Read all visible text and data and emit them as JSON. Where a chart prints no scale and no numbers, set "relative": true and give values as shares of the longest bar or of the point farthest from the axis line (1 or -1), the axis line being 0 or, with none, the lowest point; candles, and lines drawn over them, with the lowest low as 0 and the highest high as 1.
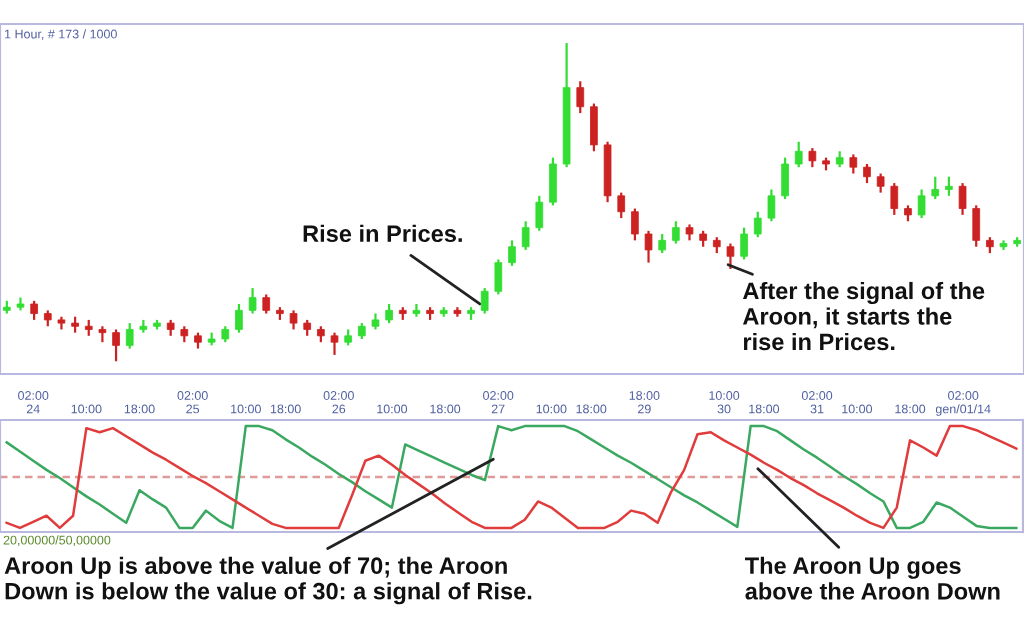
{
  "chart_data": [
    {
      "type": "candlestick",
      "relative": true,
      "tick_labels": false,
      "categories": [
        null,
        null,
        null,
        null,
        null,
        null,
        null,
        null,
        null,
        null,
        null,
        null,
        null,
        null,
        null,
        null,
        null,
        null,
        null,
        null,
        null,
        null,
        null,
        null,
        null,
        null,
        null,
        null,
        null,
        null,
        null,
        null,
        null,
        null,
        null,
        null,
        null,
        null,
        null,
        null,
        null,
        null,
        null,
        null,
        null,
        null,
        null,
        null,
        null,
        null,
        null,
        null,
        null,
        null,
        null,
        null,
        null,
        null,
        null,
        null,
        null,
        null,
        null,
        null,
        null,
        null,
        null,
        null,
        null,
        null,
        null,
        null,
        null,
        null,
        null
      ],
      "ohlc": [
        [
          0.16,
          0.19,
          0.15,
          0.17
        ],
        [
          0.17,
          0.2,
          0.16,
          0.18
        ],
        [
          0.18,
          0.19,
          0.13,
          0.15
        ],
        [
          0.15,
          0.16,
          0.11,
          0.13
        ],
        [
          0.13,
          0.14,
          0.1,
          0.12
        ],
        [
          0.12,
          0.14,
          0.09,
          0.11
        ],
        [
          0.11,
          0.13,
          0.08,
          0.1
        ],
        [
          0.1,
          0.11,
          0.06,
          0.09
        ],
        [
          0.09,
          0.1,
          0.0,
          0.05
        ],
        [
          0.05,
          0.12,
          0.04,
          0.1
        ],
        [
          0.1,
          0.13,
          0.09,
          0.11
        ],
        [
          0.11,
          0.13,
          0.1,
          0.12
        ],
        [
          0.12,
          0.13,
          0.08,
          0.1
        ],
        [
          0.1,
          0.11,
          0.06,
          0.08
        ],
        [
          0.08,
          0.09,
          0.04,
          0.06
        ],
        [
          0.06,
          0.09,
          0.05,
          0.07
        ],
        [
          0.07,
          0.11,
          0.06,
          0.1
        ],
        [
          0.1,
          0.18,
          0.09,
          0.16
        ],
        [
          0.16,
          0.23,
          0.15,
          0.2
        ],
        [
          0.2,
          0.21,
          0.15,
          0.16
        ],
        [
          0.16,
          0.17,
          0.13,
          0.15
        ],
        [
          0.15,
          0.16,
          0.1,
          0.12
        ],
        [
          0.12,
          0.13,
          0.08,
          0.1
        ],
        [
          0.1,
          0.11,
          0.06,
          0.08
        ],
        [
          0.08,
          0.09,
          0.02,
          0.06
        ],
        [
          0.06,
          0.1,
          0.05,
          0.08
        ],
        [
          0.08,
          0.12,
          0.07,
          0.11
        ],
        [
          0.11,
          0.15,
          0.1,
          0.13
        ],
        [
          0.13,
          0.18,
          0.12,
          0.16
        ],
        [
          0.16,
          0.17,
          0.13,
          0.15
        ],
        [
          0.15,
          0.18,
          0.14,
          0.16
        ],
        [
          0.16,
          0.17,
          0.13,
          0.15
        ],
        [
          0.15,
          0.17,
          0.14,
          0.16
        ],
        [
          0.16,
          0.17,
          0.14,
          0.15
        ],
        [
          0.15,
          0.17,
          0.13,
          0.16
        ],
        [
          0.16,
          0.23,
          0.15,
          0.22
        ],
        [
          0.22,
          0.32,
          0.21,
          0.31
        ],
        [
          0.31,
          0.38,
          0.3,
          0.36
        ],
        [
          0.36,
          0.44,
          0.35,
          0.42
        ],
        [
          0.42,
          0.52,
          0.41,
          0.5
        ],
        [
          0.5,
          0.64,
          0.49,
          0.62
        ],
        [
          0.62,
          1.0,
          0.61,
          0.86
        ],
        [
          0.86,
          0.88,
          0.78,
          0.8
        ],
        [
          0.8,
          0.81,
          0.66,
          0.68
        ],
        [
          0.68,
          0.69,
          0.5,
          0.52
        ],
        [
          0.52,
          0.53,
          0.45,
          0.47
        ],
        [
          0.47,
          0.48,
          0.38,
          0.4
        ],
        [
          0.4,
          0.41,
          0.31,
          0.35
        ],
        [
          0.35,
          0.4,
          0.34,
          0.38
        ],
        [
          0.38,
          0.44,
          0.37,
          0.42
        ],
        [
          0.42,
          0.43,
          0.38,
          0.4
        ],
        [
          0.4,
          0.41,
          0.36,
          0.38
        ],
        [
          0.38,
          0.39,
          0.34,
          0.36
        ],
        [
          0.36,
          0.37,
          0.29,
          0.33
        ],
        [
          0.33,
          0.42,
          0.32,
          0.4
        ],
        [
          0.4,
          0.47,
          0.39,
          0.45
        ],
        [
          0.45,
          0.54,
          0.44,
          0.52
        ],
        [
          0.52,
          0.64,
          0.51,
          0.62
        ],
        [
          0.62,
          0.69,
          0.61,
          0.66
        ],
        [
          0.66,
          0.67,
          0.61,
          0.63
        ],
        [
          0.63,
          0.64,
          0.6,
          0.62
        ],
        [
          0.62,
          0.66,
          0.61,
          0.64
        ],
        [
          0.64,
          0.65,
          0.59,
          0.61
        ],
        [
          0.61,
          0.62,
          0.56,
          0.58
        ],
        [
          0.58,
          0.59,
          0.53,
          0.55
        ],
        [
          0.55,
          0.56,
          0.46,
          0.48
        ],
        [
          0.48,
          0.49,
          0.44,
          0.46
        ],
        [
          0.46,
          0.54,
          0.45,
          0.52
        ],
        [
          0.52,
          0.58,
          0.51,
          0.54
        ],
        [
          0.54,
          0.58,
          0.52,
          0.55
        ],
        [
          0.55,
          0.56,
          0.46,
          0.48
        ],
        [
          0.48,
          0.49,
          0.36,
          0.38
        ],
        [
          0.38,
          0.39,
          0.34,
          0.36
        ],
        [
          0.36,
          0.38,
          0.35,
          0.37
        ],
        [
          0.37,
          0.39,
          0.36,
          0.38
        ]
      ],
      "colors": [
        "#33dd33",
        "#33dd33",
        "#cc2222",
        "#cc2222",
        "#cc2222",
        "#cc2222",
        "#cc2222",
        "#cc2222",
        "#cc2222",
        "#33dd33",
        "#33dd33",
        "#33dd33",
        "#cc2222",
        "#cc2222",
        "#cc2222",
        "#33dd33",
        "#33dd33",
        "#33dd33",
        "#33dd33",
        "#cc2222",
        "#cc2222",
        "#cc2222",
        "#cc2222",
        "#cc2222",
        "#cc2222",
        "#33dd33",
        "#33dd33",
        "#33dd33",
        "#33dd33",
        "#cc2222",
        "#33dd33",
        "#cc2222",
        "#33dd33",
        "#cc2222",
        "#33dd33",
        "#33dd33",
        "#33dd33",
        "#33dd33",
        "#33dd33",
        "#33dd33",
        "#33dd33",
        "#33dd33",
        "#cc2222",
        "#cc2222",
        "#cc2222",
        "#cc2222",
        "#cc2222",
        "#cc2222",
        "#33dd33",
        "#33dd33",
        "#cc2222",
        "#cc2222",
        "#cc2222",
        "#cc2222",
        "#33dd33",
        "#33dd33",
        "#33dd33",
        "#33dd33",
        "#33dd33",
        "#cc2222",
        "#cc2222",
        "#33dd33",
        "#cc2222",
        "#cc2222",
        "#cc2222",
        "#cc2222",
        "#cc2222",
        "#33dd33",
        "#33dd33",
        "#33dd33",
        "#cc2222",
        "#cc2222",
        "#cc2222",
        "#33dd33",
        "#33dd33"
      ],
      "annotations": [
        "1 Hour, # 173 / 1000",
        "Rise in Prices.",
        "After the signal of the\nAroon, it starts the\nrise in Prices."
      ]
    },
    {
      "type": "line",
      "relative": true,
      "tick_labels": "x",
      "categories": [
        null,
        null,
        "02:00\n24",
        null,
        null,
        null,
        "10:00",
        null,
        null,
        null,
        "18:00",
        null,
        null,
        null,
        "02:00\n25",
        null,
        null,
        null,
        "10:00",
        null,
        null,
        "18:00",
        null,
        null,
        null,
        "02:00\n26",
        null,
        null,
        null,
        "10:00",
        null,
        null,
        null,
        "18:00",
        null,
        null,
        null,
        "02:00\n27",
        null,
        null,
        null,
        "10:00",
        null,
        null,
        "18:00",
        null,
        null,
        null,
        "18:00\n29",
        null,
        null,
        null,
        null,
        null,
        "10:00\n30",
        null,
        null,
        "18:00",
        null,
        null,
        null,
        "02:00\n31",
        null,
        null,
        "10:00",
        null,
        null,
        null,
        "18:00",
        null,
        null,
        null,
        "02:00\ngen/01/14",
        null,
        null,
        null,
        null
      ],
      "ref_lines": [
        {
          "axis": "y",
          "value": 0.5,
          "color": "#e09a9a",
          "line_style": "dashed"
        }
      ],
      "series": [
        {
          "color": "#3aa860",
          "values": [
            0.84,
            0.75,
            0.66,
            0.57,
            0.49,
            0.4,
            0.31,
            0.23,
            0.14,
            0.05,
            0.37,
            0.28,
            0.2,
            0,
            0,
            0.17,
            0.07,
            0,
            1,
            1,
            0.96,
            0.87,
            0.79,
            0.7,
            0.62,
            0.53,
            0.45,
            0.36,
            0.28,
            0.2,
            0.82,
            0.76,
            0.7,
            0.64,
            0.58,
            0.52,
            0.47,
            1,
            0.96,
            1,
            1,
            1,
            1,
            0.95,
            0.87,
            0.79,
            0.71,
            0.64,
            0.56,
            0.48,
            0.4,
            0.32,
            0.25,
            0.17,
            0.09,
            0.01,
            1,
            1,
            0.95,
            0.86,
            0.77,
            0.69,
            0.6,
            0.51,
            0.43,
            0.34,
            0.26,
            0,
            0,
            0.06,
            0.25,
            0.2,
            0.11,
            0.02,
            0,
            0,
            0
          ]
        },
        {
          "color": "#e03c3c",
          "values": [
            0.05,
            0,
            0.06,
            0.12,
            0,
            0.12,
            0.98,
            0.94,
            0.98,
            0.9,
            0.82,
            0.74,
            0.67,
            0.59,
            0.51,
            0.44,
            0.36,
            0.28,
            0.2,
            0.12,
            0.04,
            0,
            0,
            0,
            0,
            0,
            0.32,
            0.66,
            0.71,
            0.62,
            0.52,
            0.43,
            0.34,
            0.24,
            0.15,
            0.06,
            0,
            0,
            0,
            0.08,
            0.26,
            0.2,
            0.1,
            0,
            0,
            0,
            0.06,
            0.17,
            0.14,
            0.05,
            0.35,
            0.57,
            0.92,
            0.94,
            0.86,
            0.79,
            0.72,
            0.64,
            0.57,
            0.49,
            0.42,
            0.34,
            0.27,
            0.2,
            0.12,
            0.05,
            0,
            0.2,
            0.86,
            0.79,
            0.71,
            1,
            1,
            0.96,
            0.9,
            0.84,
            0.78
          ]
        }
      ],
      "annotations": [
        "20,00000/50,00000",
        "Aroon Up is above the value of 70; the Aroon\nDown is below the value of 30: a signal of Rise.",
        "The Aroon Up goes\nabove the Aroon Down"
      ]
    }
  ]
}
